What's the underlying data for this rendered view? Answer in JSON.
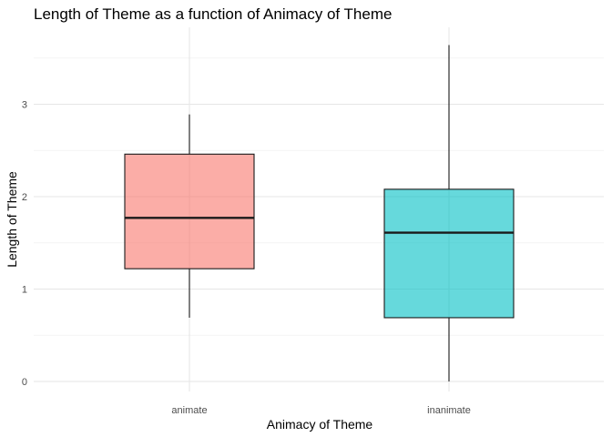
{
  "chart_data": {
    "type": "boxplot",
    "title": "Length of Theme as a function of Animacy of Theme",
    "xlabel": "Animacy of Theme",
    "ylabel": "Length of Theme",
    "categories": [
      "animate",
      "inanimate"
    ],
    "ylim": [
      0,
      3.7
    ],
    "yticks": [
      0,
      1,
      2,
      3
    ],
    "y_minor_ticks": [
      0.5,
      1.5,
      2.5,
      3.5
    ],
    "grid": true,
    "legend": "none",
    "boxes": [
      {
        "category": "animate",
        "min": 0.69,
        "q1": 1.22,
        "median": 1.77,
        "q3": 2.46,
        "max": 2.89,
        "color": "#F8766D"
      },
      {
        "category": "inanimate",
        "min": 0.0,
        "q1": 0.69,
        "median": 1.61,
        "q3": 2.08,
        "max": 3.64,
        "color": "#00BFC4"
      }
    ]
  }
}
